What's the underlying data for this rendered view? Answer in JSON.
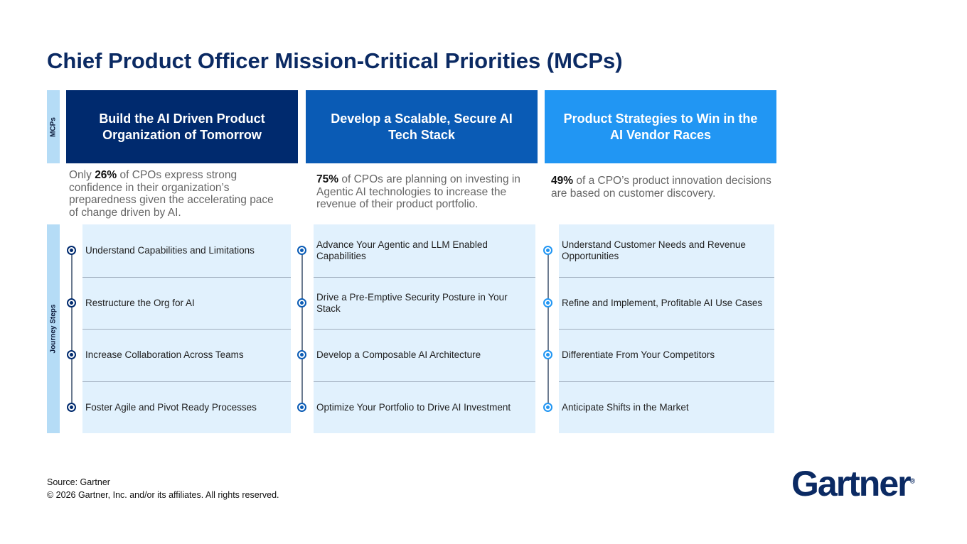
{
  "title": "Chief Product Officer Mission-Critical Priorities (MCPs)",
  "labels": {
    "mcps": "MCPs",
    "journey": "Journey Steps"
  },
  "colors": {
    "col1": "#002a6e",
    "col2": "#0a5bb5",
    "col3": "#2196f3"
  },
  "columns": [
    {
      "header": "Build the AI Driven Product Organization of Tomorrow",
      "stat_pre": "Only ",
      "stat_bold": "26%",
      "stat_post": " of CPOs express strong confidence in their organization’s preparedness given the accelerating pace of change driven by AI.",
      "steps": [
        "Understand Capabilities and Limitations",
        "Restructure the Org for AI",
        "Increase Collaboration Across Teams",
        "Foster Agile and Pivot Ready Processes"
      ]
    },
    {
      "header": "Develop a Scalable, Secure AI Tech Stack",
      "stat_pre": "",
      "stat_bold": "75%",
      "stat_post": " of CPOs are planning on investing in Agentic AI technologies to increase the revenue of their product portfolio.",
      "steps": [
        "Advance Your Agentic and LLM Enabled Capabilities",
        "Drive a Pre-Emptive Security Posture in Your Stack",
        "Develop a Composable AI Architecture",
        "Optimize Your Portfolio to Drive AI Investment"
      ]
    },
    {
      "header": "Product Strategies to Win in the AI Vendor Races",
      "stat_pre": "",
      "stat_bold": "49%",
      "stat_post": " of a CPO’s product innovation decisions are based on customer discovery.",
      "steps": [
        "Understand Customer Needs and Revenue Opportunities",
        "Refine and Implement, Profitable AI Use Cases",
        "Differentiate From Your Competitors",
        "Anticipate Shifts in the Market"
      ]
    }
  ],
  "footer": {
    "source": "Source: Gartner",
    "copyright": "© 2026 Gartner, Inc. and/or its affiliates. All rights reserved."
  },
  "logo": "Gartner"
}
